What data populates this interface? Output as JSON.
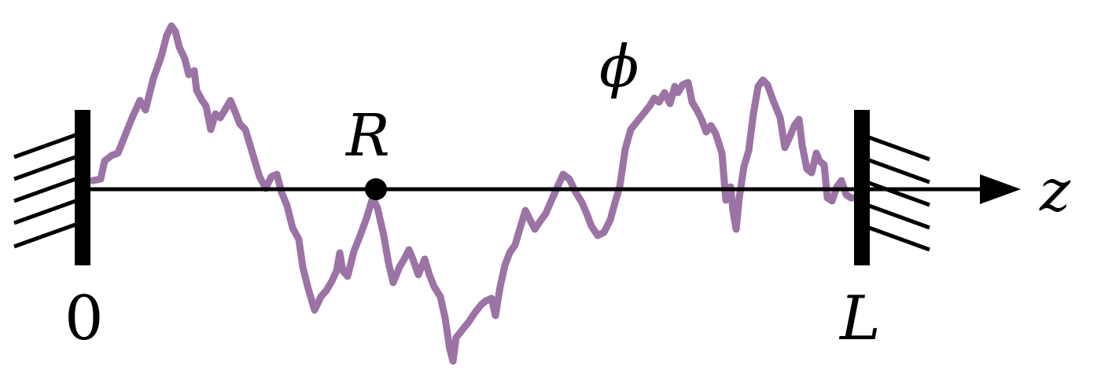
{
  "labels": {
    "left_end": "0",
    "right_end": "L",
    "point": "R",
    "field": "ϕ",
    "axis": "z"
  },
  "colors": {
    "field": "#9b73a4",
    "ink": "#000000"
  }
}
